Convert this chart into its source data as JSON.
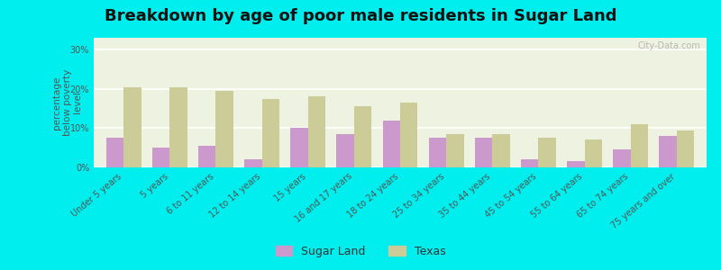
{
  "title": "Breakdown by age of poor male residents in Sugar Land",
  "ylabel": "percentage\nbelow poverty\nlevel",
  "categories": [
    "Under 5 years",
    "5 years",
    "6 to 11 years",
    "12 to 14 years",
    "15 years",
    "16 and 17 years",
    "18 to 24 years",
    "25 to 34 years",
    "35 to 44 years",
    "45 to 54 years",
    "55 to 64 years",
    "65 to 74 years",
    "75 years and over"
  ],
  "sugar_land": [
    7.5,
    5.0,
    5.5,
    2.0,
    10.0,
    8.5,
    12.0,
    7.5,
    7.5,
    2.0,
    1.5,
    4.5,
    8.0
  ],
  "texas": [
    20.5,
    20.5,
    19.5,
    17.5,
    18.0,
    15.5,
    16.5,
    8.5,
    8.5,
    7.5,
    7.0,
    11.0,
    9.5
  ],
  "sugar_land_color": "#cc99cc",
  "texas_color": "#cccc99",
  "background_color": "#00eeee",
  "plot_bg_color": "#eef2e0",
  "ylim": [
    0,
    33
  ],
  "yticks": [
    0,
    10,
    20,
    30
  ],
  "ytick_labels": [
    "0%",
    "10%",
    "20%",
    "30%"
  ],
  "title_fontsize": 13,
  "axis_label_fontsize": 7.5,
  "tick_label_fontsize": 7,
  "legend_fontsize": 9,
  "bar_width": 0.38,
  "watermark": "City-Data.com"
}
